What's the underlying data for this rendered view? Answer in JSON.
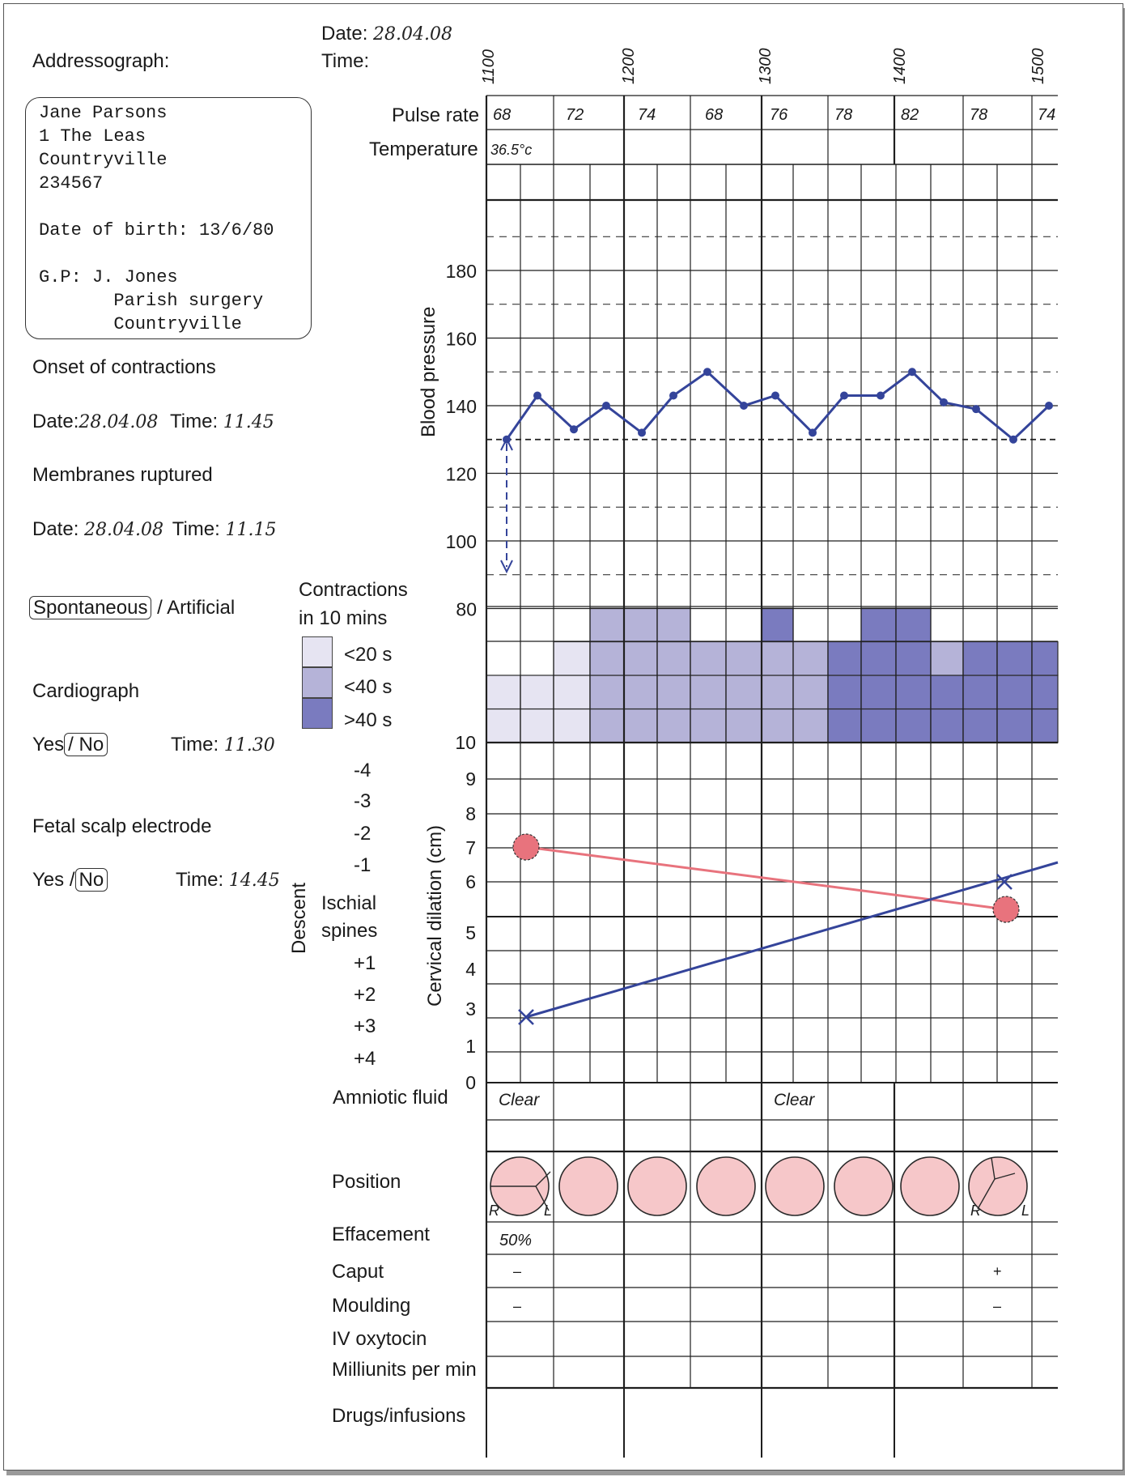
{
  "patient": {
    "addressograph_label": "Addressograph:",
    "address_lines": [
      "Jane Parsons",
      "1 The Leas",
      "Countryville",
      "234567",
      "",
      "Date of birth: 13/6/80",
      "",
      "G.P: J. Jones",
      "       Parish surgery",
      "       Countryville"
    ]
  },
  "header": {
    "date_label": "Date:",
    "date_value": "28.04.08",
    "time_label": "Time:",
    "hours": [
      "1100",
      "1200",
      "1300",
      "1400",
      "1500"
    ]
  },
  "onset": {
    "title": "Onset of contractions",
    "date_label": "Date:",
    "date_value": "28.04.08",
    "time_label": "Time:",
    "time_value": "11.45"
  },
  "membranes": {
    "title": "Membranes ruptured",
    "date_label": "Date:",
    "date_value": "28.04.08",
    "time_label": "Time:",
    "time_value": "11.15",
    "mode_selected": "Spontaneous",
    "mode_rest": " / Artificial"
  },
  "cardiograph": {
    "title": "Cardiograph",
    "yes": "Yes",
    "no": "/ No",
    "time_label": "Time:",
    "time_value": "11.30"
  },
  "fetal_scalp": {
    "title": "Fetal scalp electrode",
    "yes": "Yes /",
    "no": "No",
    "time_label": "Time:",
    "time_value": "14.45"
  },
  "contractions_legend": {
    "title_1": "Contractions",
    "title_2": "in 10 mins",
    "items": [
      {
        "label": "<20 s",
        "color": "#e6e4f2"
      },
      {
        "label": "<40 s",
        "color": "#b5b3d8"
      },
      {
        "label": ">40 s",
        "color": "#7a7bbf"
      }
    ]
  },
  "descent": {
    "title": "Descent",
    "ischial_1": "Ischial",
    "ischial_2": "spines",
    "levels_above": [
      "-4",
      "-3",
      "-2",
      "-1"
    ],
    "levels_below": [
      "+1",
      "+2",
      "+3",
      "+4"
    ]
  },
  "row_labels": {
    "pulse": "Pulse rate",
    "temperature": "Temperature",
    "blood_pressure": "Blood pressure",
    "cervical": "Cervical dilation (cm)",
    "amniotic": "Amniotic fluid",
    "position": "Position",
    "effacement": "Effacement",
    "caput": "Caput",
    "moulding": "Moulding",
    "iv_oxytocin": "IV oxytocin",
    "milliunits": "Milliunits per min",
    "drugs": "Drugs/infusions"
  },
  "chart_data": {
    "type": "table",
    "pulse_rate": [
      "68",
      "72",
      "74",
      "68",
      "76",
      "78",
      "82",
      "78",
      "74"
    ],
    "temperature": "36.5°c",
    "blood_pressure": {
      "axis_labels": [
        "180",
        "160",
        "140",
        "120",
        "100",
        "80"
      ],
      "ylim": [
        80,
        200
      ],
      "values": [
        130,
        143,
        133,
        140,
        132,
        143,
        150,
        140,
        143,
        132,
        143,
        143,
        150,
        141,
        139,
        130,
        140
      ],
      "color": "#34449a"
    },
    "contractions": [
      {
        "count": 2,
        "level": 0
      },
      {
        "count": 2,
        "level": 0
      },
      {
        "count": 3,
        "level": 0
      },
      {
        "count": 4,
        "level": 1
      },
      {
        "count": 4,
        "level": 1
      },
      {
        "count": 4,
        "level": 1
      },
      {
        "count": 3,
        "level": 1
      },
      {
        "count": 3,
        "level": 1
      },
      {
        "count": 4,
        "level": 1,
        "top_level": 2
      },
      {
        "count": 3,
        "level": 1
      },
      {
        "count": 3,
        "level": 2
      },
      {
        "count": 4,
        "level": 2
      },
      {
        "count": 4,
        "level": 2
      },
      {
        "count": 3,
        "level": 2,
        "top_level": 1
      },
      {
        "count": 3,
        "level": 2
      },
      {
        "count": 3,
        "level": 2
      },
      {
        "count": 3,
        "level": 2
      }
    ],
    "cervical_axis": [
      "10",
      "9",
      "8",
      "7",
      "6",
      "5",
      "4",
      "3",
      "1",
      "0"
    ],
    "cervical_dilation": {
      "series": "X",
      "points": [
        {
          "time": "1120",
          "cm": 3
        },
        {
          "time": "1450",
          "cm": 6
        }
      ],
      "color": "#34449a"
    },
    "descent_circles": {
      "series": "O",
      "points": [
        {
          "time": "1120",
          "cm": 7
        },
        {
          "time": "1450",
          "cm": 5.2
        }
      ],
      "color": "#e8737d"
    },
    "amniotic_fluid": [
      "Clear",
      "Clear"
    ],
    "effacement": "50%",
    "caput": [
      "–",
      "+"
    ],
    "moulding": [
      "–",
      "–"
    ],
    "position_labels": {
      "left": "L",
      "right": "R"
    }
  }
}
